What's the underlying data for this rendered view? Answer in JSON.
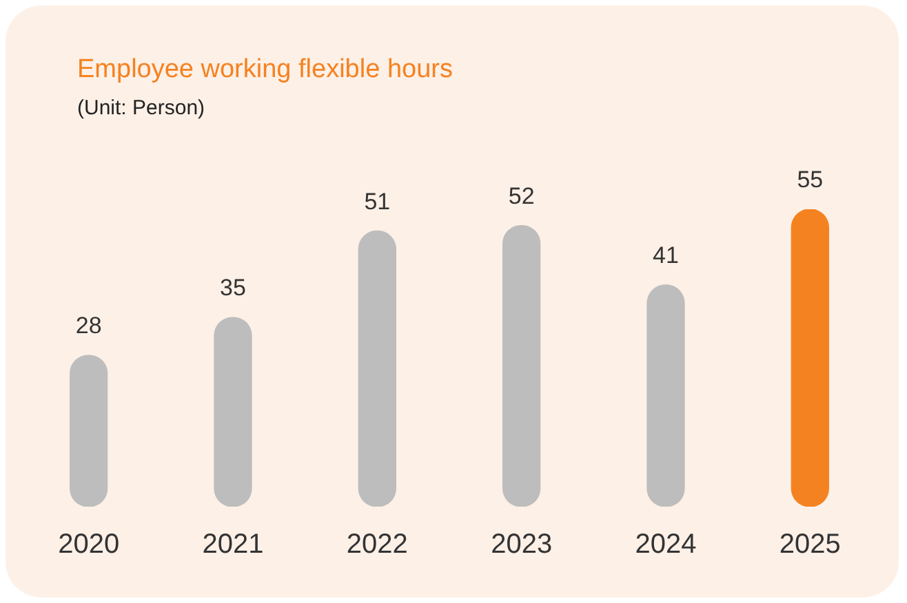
{
  "chart_data": {
    "type": "bar",
    "title": "Employee working flexible hours",
    "subtitle": "(Unit: Person)",
    "categories": [
      "2020",
      "2021",
      "2022",
      "2023",
      "2024",
      "2025"
    ],
    "values": [
      28,
      35,
      51,
      52,
      41,
      55
    ],
    "colors": [
      "#bdbdbd",
      "#bdbdbd",
      "#bdbdbd",
      "#bdbdbd",
      "#bdbdbd",
      "#f58220"
    ],
    "data_labels": true,
    "grid": false,
    "legend": false
  }
}
